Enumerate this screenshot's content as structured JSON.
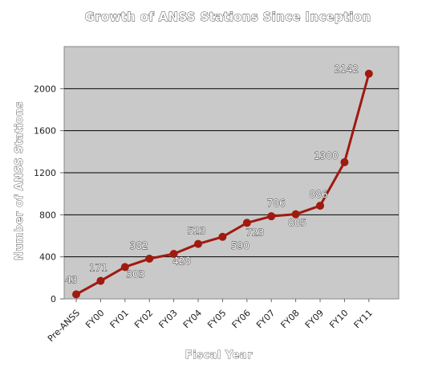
{
  "chart_data": {
    "type": "line",
    "title": "Growth of ANSS Stations Since Inception",
    "xlabel": "Fiscal Year",
    "ylabel": "Number of ANSS Stations",
    "categories": [
      "Pre-ANSS",
      "FY00",
      "FY01",
      "FY02",
      "FY03",
      "FY04",
      "FY05",
      "FY06",
      "FY07",
      "FY08",
      "FY09",
      "FY10",
      "FY11"
    ],
    "series": [
      {
        "values": [
          43,
          171,
          303,
          382,
          428,
          523,
          590,
          723,
          786,
          805,
          886,
          1300,
          2142
        ],
        "labels": [
          "43",
          "171",
          "303",
          "382",
          "428",
          "523",
          "590",
          "723",
          "786",
          "805",
          "886",
          "1300",
          "2142"
        ]
      }
    ],
    "ylim": [
      0,
      2400
    ],
    "yticks": [
      0,
      400,
      800,
      1200,
      1600,
      2000
    ],
    "ytick_labels": [
      "0",
      "400",
      "800",
      "1200",
      "1600",
      "2000"
    ],
    "grid": true,
    "colors": {
      "line": "#a01a10",
      "plot_bg": "#c9c9c9",
      "grid": "#000000"
    }
  }
}
